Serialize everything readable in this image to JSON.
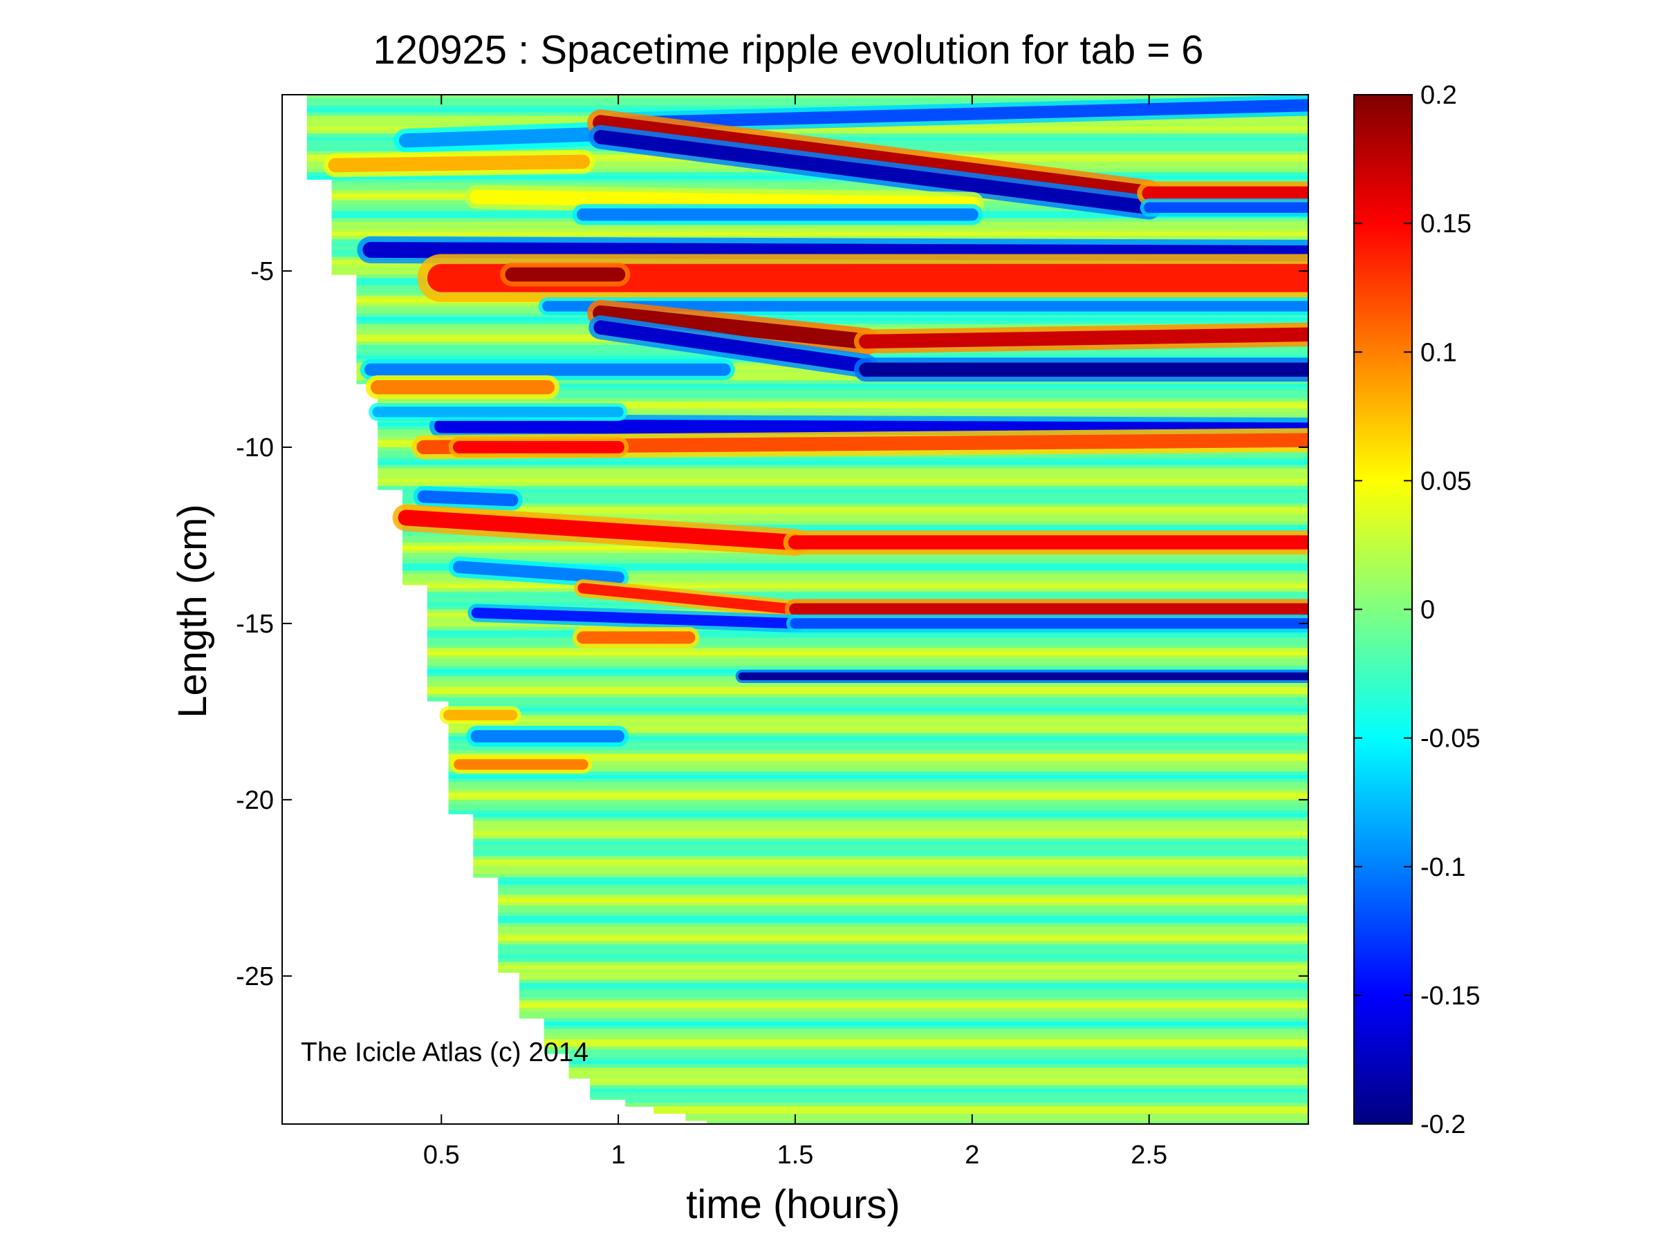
{
  "chart_data": {
    "type": "heatmap",
    "title": "120925 : Spacetime ripple evolution for tab = 6",
    "xlabel": "time (hours)",
    "ylabel": "Length (cm)",
    "xlim": [
      0.05,
      2.95
    ],
    "ylim": [
      -29.2,
      0.0
    ],
    "xticks": [
      0.5,
      1,
      1.5,
      2,
      2.5
    ],
    "xtick_labels": [
      "0.5",
      "1",
      "1.5",
      "2",
      "2.5"
    ],
    "yticks": [
      -5,
      -10,
      -15,
      -20,
      -25
    ],
    "ytick_labels": [
      "-5",
      "-10",
      "-15",
      "-20",
      "-25"
    ],
    "grid": false,
    "colormap": "jet",
    "colorbar": {
      "range": [
        -0.2,
        0.2
      ],
      "ticks": [
        0.2,
        0.15,
        0.1,
        0.05,
        0,
        -0.05,
        -0.1,
        -0.15,
        -0.2
      ],
      "tick_labels": [
        "0.2",
        "0.15",
        "0.1",
        "0.05",
        "0",
        "-0.05",
        "-0.1",
        "-0.15",
        "-0.2"
      ],
      "placement": "right"
    },
    "background_value": 0.0,
    "stripe_period_cm": 1.0,
    "stripe_amplitude": 0.03,
    "data_start_boundary": [
      {
        "time": 0.12,
        "length": -2.4
      },
      {
        "time": 0.19,
        "length": -5.1
      },
      {
        "time": 0.26,
        "length": -8.2
      },
      {
        "time": 0.32,
        "length": -11.2
      },
      {
        "time": 0.39,
        "length": -13.9
      },
      {
        "time": 0.46,
        "length": -17.2
      },
      {
        "time": 0.52,
        "length": -20.4
      },
      {
        "time": 0.59,
        "length": -22.2
      },
      {
        "time": 0.66,
        "length": -24.9
      },
      {
        "time": 0.72,
        "length": -26.2
      },
      {
        "time": 0.79,
        "length": -27.2
      },
      {
        "time": 0.86,
        "length": -27.9
      },
      {
        "time": 0.92,
        "length": -28.5
      },
      {
        "time": 1.02,
        "length": -28.7
      },
      {
        "time": 1.1,
        "length": -28.9
      },
      {
        "time": 1.19,
        "length": -29.1
      },
      {
        "time": 1.25,
        "length": -29.2
      }
    ],
    "ripple_tracks": [
      {
        "t0": 1.0,
        "t1": 2.95,
        "l0": -0.8,
        "l1": -0.3,
        "value": -0.12,
        "width": 0.35
      },
      {
        "t0": 0.4,
        "t1": 1.0,
        "l0": -1.3,
        "l1": -1.1,
        "value": -0.09,
        "width": 0.4
      },
      {
        "t0": 0.95,
        "t1": 2.5,
        "l0": -0.8,
        "l1": -2.8,
        "value": 0.18,
        "width": 0.45
      },
      {
        "t0": 0.95,
        "t1": 2.5,
        "l0": -1.2,
        "l1": -3.2,
        "value": -0.18,
        "width": 0.4
      },
      {
        "t0": 2.5,
        "t1": 2.95,
        "l0": -2.8,
        "l1": -2.8,
        "value": 0.16,
        "width": 0.4
      },
      {
        "t0": 2.5,
        "t1": 2.95,
        "l0": -3.2,
        "l1": -3.2,
        "value": -0.12,
        "width": 0.3
      },
      {
        "t0": 0.2,
        "t1": 0.9,
        "l0": -2.0,
        "l1": -1.9,
        "value": 0.08,
        "width": 0.4
      },
      {
        "t0": 0.6,
        "t1": 2.0,
        "l0": -2.9,
        "l1": -3.1,
        "value": 0.05,
        "width": 0.4
      },
      {
        "t0": 0.9,
        "t1": 2.0,
        "l0": -3.4,
        "l1": -3.4,
        "value": -0.1,
        "width": 0.35
      },
      {
        "t0": 0.3,
        "t1": 2.95,
        "l0": -4.4,
        "l1": -4.5,
        "value": -0.17,
        "width": 0.45
      },
      {
        "t0": 0.5,
        "t1": 2.95,
        "l0": -5.2,
        "l1": -5.2,
        "value": 0.14,
        "width": 0.8
      },
      {
        "t0": 0.7,
        "t1": 1.0,
        "l0": -5.1,
        "l1": -5.1,
        "value": 0.19,
        "width": 0.4
      },
      {
        "t0": 0.8,
        "t1": 2.95,
        "l0": -6.0,
        "l1": -6.0,
        "value": -0.1,
        "width": 0.3
      },
      {
        "t0": 0.95,
        "t1": 1.7,
        "l0": -6.2,
        "l1": -7.0,
        "value": 0.19,
        "width": 0.45
      },
      {
        "t0": 1.7,
        "t1": 2.95,
        "l0": -7.0,
        "l1": -6.8,
        "value": 0.17,
        "width": 0.4
      },
      {
        "t0": 0.95,
        "t1": 1.7,
        "l0": -6.6,
        "l1": -7.7,
        "value": -0.17,
        "width": 0.4
      },
      {
        "t0": 1.7,
        "t1": 2.95,
        "l0": -7.8,
        "l1": -7.8,
        "value": -0.19,
        "width": 0.4
      },
      {
        "t0": 0.3,
        "t1": 1.3,
        "l0": -7.8,
        "l1": -7.8,
        "value": -0.1,
        "width": 0.35
      },
      {
        "t0": 0.3,
        "t1": 0.8,
        "l0": -8.3,
        "l1": -8.3,
        "value": 0.1,
        "width": 0.4
      },
      {
        "t0": 0.5,
        "t1": 2.95,
        "l0": -9.4,
        "l1": -9.5,
        "value": -0.16,
        "width": 0.4
      },
      {
        "t0": 0.3,
        "t1": 1.0,
        "l0": -9.0,
        "l1": -9.0,
        "value": -0.08,
        "width": 0.3
      },
      {
        "t0": 0.45,
        "t1": 2.95,
        "l0": -10.0,
        "l1": -9.8,
        "value": 0.12,
        "width": 0.4
      },
      {
        "t0": 0.55,
        "t1": 1.0,
        "l0": -10.0,
        "l1": -10.0,
        "value": 0.15,
        "width": 0.35
      },
      {
        "t0": 0.45,
        "t1": 0.7,
        "l0": -11.4,
        "l1": -11.5,
        "value": -0.11,
        "width": 0.35
      },
      {
        "t0": 0.4,
        "t1": 1.5,
        "l0": -12.0,
        "l1": -12.7,
        "value": 0.15,
        "width": 0.45
      },
      {
        "t0": 1.5,
        "t1": 2.95,
        "l0": -12.7,
        "l1": -12.7,
        "value": 0.15,
        "width": 0.4
      },
      {
        "t0": 0.55,
        "t1": 1.0,
        "l0": -13.4,
        "l1": -13.7,
        "value": -0.1,
        "width": 0.35
      },
      {
        "t0": 0.9,
        "t1": 1.5,
        "l0": -14.0,
        "l1": -14.6,
        "value": 0.14,
        "width": 0.3
      },
      {
        "t0": 1.5,
        "t1": 2.95,
        "l0": -14.6,
        "l1": -14.6,
        "value": 0.17,
        "width": 0.35
      },
      {
        "t0": 0.6,
        "t1": 1.5,
        "l0": -14.7,
        "l1": -15.0,
        "value": -0.14,
        "width": 0.3
      },
      {
        "t0": 1.5,
        "t1": 2.95,
        "l0": -15.0,
        "l1": -15.0,
        "value": -0.12,
        "width": 0.3
      },
      {
        "t0": 0.9,
        "t1": 1.2,
        "l0": -15.4,
        "l1": -15.4,
        "value": 0.11,
        "width": 0.35
      },
      {
        "t0": 1.35,
        "t1": 2.95,
        "l0": -16.5,
        "l1": -16.5,
        "value": -0.19,
        "width": 0.22
      },
      {
        "t0": 0.6,
        "t1": 1.0,
        "l0": -18.2,
        "l1": -18.2,
        "value": -0.1,
        "width": 0.35
      },
      {
        "t0": 0.5,
        "t1": 0.7,
        "l0": -17.6,
        "l1": -17.6,
        "value": 0.08,
        "width": 0.3
      },
      {
        "t0": 0.55,
        "t1": 0.9,
        "l0": -19.0,
        "l1": -19.0,
        "value": 0.1,
        "width": 0.3
      }
    ],
    "annotations": [
      "The Icicle Atlas (c) 2014"
    ]
  }
}
